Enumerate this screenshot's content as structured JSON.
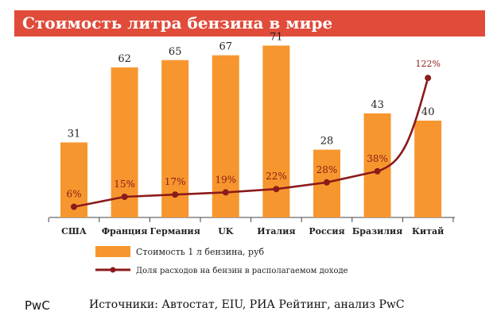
{
  "header": {
    "title": "Стоимость литра бензина в мире"
  },
  "chart_data": {
    "type": "bar",
    "categories": [
      "США",
      "Франция",
      "Германия",
      "UK",
      "Италия",
      "Россия",
      "Бразилия",
      "Китай"
    ],
    "series": [
      {
        "name": "Стоимость 1 л бензина, руб",
        "kind": "bar",
        "color": "#f7962e",
        "values": [
          31,
          62,
          65,
          67,
          71,
          28,
          43,
          40
        ],
        "labels": [
          "31",
          "62",
          "65",
          "67",
          "71",
          "28",
          "43",
          "40"
        ]
      },
      {
        "name": "Доля расходов на бензин в располагаемом доходе",
        "kind": "line",
        "color": "#8b1a1a",
        "values": [
          6,
          15,
          17,
          19,
          22,
          28,
          38,
          122
        ],
        "labels": [
          "6%",
          "15%",
          "17%",
          "19%",
          "22%",
          "28%",
          "38%",
          "122%"
        ]
      }
    ],
    "legend_position": "bottom",
    "grid": false
  },
  "footer": {
    "brand": "PwC",
    "source": "Источники: Автостат, EIU, РИА Рейтинг, анализ PwC"
  }
}
